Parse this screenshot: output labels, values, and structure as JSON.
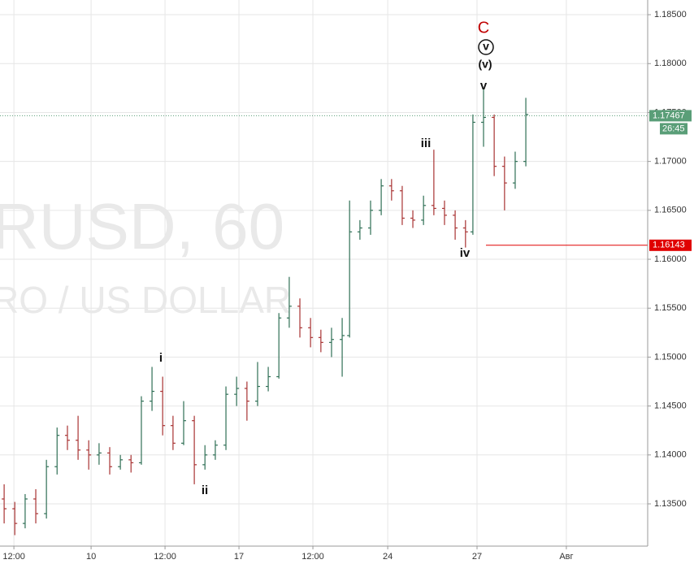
{
  "chart_data": {
    "type": "ohlc",
    "watermark": [
      "RUSD, 60",
      "RO / US DOLLAR"
    ],
    "x": [
      -0.33,
      0.03,
      0.38,
      0.74,
      1.1,
      1.46,
      1.81,
      2.17,
      2.53,
      2.88,
      3.24,
      3.6,
      3.96,
      4.31,
      4.67,
      5.03,
      5.38,
      5.74,
      6.1,
      6.46,
      6.81,
      7.17,
      7.53,
      7.88,
      8.24,
      8.6,
      8.96,
      9.31,
      9.67,
      10.03,
      10.38,
      10.74,
      11.1,
      11.35,
      11.7,
      12.06,
      12.42,
      12.77,
      13.13,
      13.49,
      13.85,
      14.2,
      14.56,
      14.92,
      15.27,
      15.52,
      15.88,
      16.24,
      16.59,
      16.95,
      17.31
    ],
    "open": [
      1.1355,
      1.1345,
      1.133,
      1.1355,
      1.134,
      1.1388,
      1.142,
      1.1415,
      1.1405,
      1.14,
      1.1402,
      1.1388,
      1.1395,
      1.1392,
      1.1455,
      1.1465,
      1.143,
      1.1412,
      1.1435,
      1.139,
      1.14,
      1.141,
      1.1462,
      1.1468,
      1.1455,
      1.147,
      1.148,
      1.154,
      1.1552,
      1.153,
      1.152,
      1.1515,
      1.1518,
      1.1522,
      1.1628,
      1.1632,
      1.165,
      1.1675,
      1.167,
      1.1642,
      1.164,
      1.1655,
      1.1652,
      1.1645,
      1.1632,
      1.1628,
      1.174,
      1.1745,
      1.1695,
      1.1678,
      1.17
    ],
    "high": [
      1.137,
      1.1352,
      1.136,
      1.1365,
      1.1395,
      1.1428,
      1.143,
      1.144,
      1.1415,
      1.1412,
      1.1408,
      1.14,
      1.14,
      1.146,
      1.149,
      1.148,
      1.144,
      1.1455,
      1.144,
      1.141,
      1.1415,
      1.147,
      1.148,
      1.1475,
      1.1495,
      1.149,
      1.1545,
      1.1582,
      1.156,
      1.154,
      1.1528,
      1.153,
      1.154,
      1.166,
      1.164,
      1.166,
      1.1682,
      1.1682,
      1.1675,
      1.165,
      1.1665,
      1.1712,
      1.166,
      1.165,
      1.164,
      1.1748,
      1.1775,
      1.1748,
      1.1705,
      1.171,
      1.1765
    ],
    "low": [
      1.133,
      1.1318,
      1.1325,
      1.133,
      1.1335,
      1.138,
      1.1405,
      1.1395,
      1.1385,
      1.139,
      1.138,
      1.1385,
      1.1382,
      1.139,
      1.1445,
      1.142,
      1.1405,
      1.141,
      1.137,
      1.1385,
      1.1395,
      1.1405,
      1.145,
      1.1435,
      1.145,
      1.1465,
      1.1478,
      1.153,
      1.152,
      1.151,
      1.1505,
      1.15,
      1.148,
      1.152,
      1.162,
      1.1625,
      1.1645,
      1.166,
      1.1635,
      1.1632,
      1.1635,
      1.1645,
      1.1635,
      1.162,
      1.1612,
      1.1625,
      1.1715,
      1.1685,
      1.165,
      1.1672,
      1.1695
    ],
    "close": [
      1.1345,
      1.133,
      1.1355,
      1.134,
      1.1388,
      1.142,
      1.1415,
      1.1405,
      1.14,
      1.1402,
      1.1388,
      1.1395,
      1.1392,
      1.1455,
      1.1465,
      1.143,
      1.1412,
      1.1435,
      1.139,
      1.14,
      1.141,
      1.1462,
      1.1468,
      1.1455,
      1.147,
      1.148,
      1.154,
      1.1552,
      1.153,
      1.152,
      1.1515,
      1.1518,
      1.1522,
      1.1628,
      1.1632,
      1.165,
      1.1675,
      1.167,
      1.1642,
      1.164,
      1.1655,
      1.1652,
      1.1645,
      1.1632,
      1.1628,
      1.174,
      1.1745,
      1.1695,
      1.1678,
      1.17,
      1.1748
    ],
    "up_color": "#2f6f55",
    "down_color": "#a83232",
    "xlim": [
      -0.47,
      21.43
    ],
    "xticks": [
      {
        "value": 0,
        "label": "12:00"
      },
      {
        "value": 2.61,
        "label": "10"
      },
      {
        "value": 5.11,
        "label": "12:00"
      },
      {
        "value": 7.61,
        "label": "17"
      },
      {
        "value": 10.11,
        "label": "12:00"
      },
      {
        "value": 12.64,
        "label": "24"
      },
      {
        "value": 15.66,
        "label": "27"
      },
      {
        "value": 18.68,
        "label": "Авг"
      }
    ],
    "ylim": [
      1.13068,
      1.1865
    ],
    "yticks": [
      {
        "value": 1.135,
        "label": "1.13500"
      },
      {
        "value": 1.14,
        "label": "1.14000"
      },
      {
        "value": 1.145,
        "label": "1.14500"
      },
      {
        "value": 1.15,
        "label": "1.15000"
      },
      {
        "value": 1.155,
        "label": "1.15500"
      },
      {
        "value": 1.16,
        "label": "1.16000"
      },
      {
        "value": 1.165,
        "label": "1.16500"
      },
      {
        "value": 1.17,
        "label": "1.17000"
      },
      {
        "value": 1.175,
        "label": "1.17500"
      },
      {
        "value": 1.18,
        "label": "1.18000"
      },
      {
        "value": 1.185,
        "label": "1.18500"
      }
    ],
    "grid": true,
    "price_lines": [
      {
        "value": 1.17467,
        "color": "#5a9e78",
        "style": "dotted",
        "timer": "26:45"
      },
      {
        "value": 1.16143,
        "color": "#e00000",
        "style": "solid"
      }
    ],
    "annotations": [
      {
        "text": "C",
        "color": "#c00000"
      },
      {
        "text": "v",
        "color": "#111111",
        "circled": true
      },
      {
        "text": "(v)",
        "color": "#111111"
      },
      {
        "text": "v",
        "color": "#111111"
      },
      {
        "text": "iii",
        "color": "#111111"
      },
      {
        "text": "iv",
        "color": "#111111"
      },
      {
        "text": "i",
        "color": "#111111"
      },
      {
        "text": "ii",
        "color": "#111111"
      }
    ]
  }
}
